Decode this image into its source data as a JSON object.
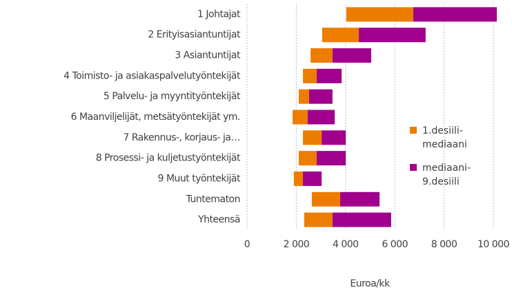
{
  "chart_data": {
    "type": "floating-bar",
    "categories": [
      "1 Johtajat",
      "2 Erityisasiantuntijat",
      "3 Asiantuntijat",
      "4 Toimisto- ja asiakaspalvelutyöntekijät",
      "5 Palvelu- ja myyntityöntekijät",
      "6 Maanviljelijät, metsätyöntekijät ym.",
      "7 Rakennus-, korjaus- ja…",
      "8 Prosessi- ja kuljetustyöntekijät",
      "9 Muut työntekijät",
      "Tuntematon",
      "Yhteensä"
    ],
    "series": [
      {
        "color": "transparent",
        "values": [
          4030,
          3050,
          2580,
          2270,
          2100,
          1850,
          2270,
          2100,
          1900,
          2630,
          2320
        ]
      },
      {
        "name": "1.desiili-mediaani",
        "color": "#ed7d00",
        "values": [
          2720,
          1490,
          890,
          560,
          420,
          610,
          760,
          730,
          370,
          1150,
          1150
        ]
      },
      {
        "name": "mediaani-9.desiili",
        "color": "#a0008c",
        "values": [
          3390,
          2710,
          1570,
          1010,
          950,
          1100,
          980,
          1180,
          760,
          1600,
          2380
        ]
      }
    ],
    "xlabel": "Euroa/kk",
    "xlim": [
      0,
      10000
    ],
    "xticks": [
      0,
      {
        "value": 2000,
        "label": "2 000"
      },
      {
        "value": 4000,
        "label": "4 000"
      },
      {
        "value": 6000,
        "label": "6 000"
      },
      {
        "value": 8000,
        "label": "8 000"
      },
      {
        "value": 10000,
        "label": "10 000"
      }
    ],
    "grid": true,
    "legend": "right"
  }
}
